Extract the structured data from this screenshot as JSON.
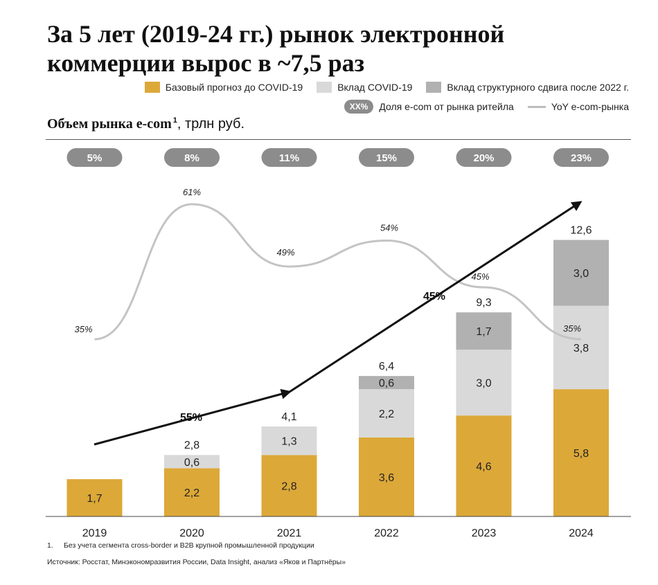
{
  "title": "За 5 лет (2019-24 гг.) рынок электронной коммерции вырос в ~7,5 раз",
  "legend": {
    "base": "Базовый прогноз до COVID-19",
    "covid": "Вклад COVID-19",
    "structural": "Вклад структурного сдвига после 2022 г.",
    "share_sample": "XX%",
    "share": "Доля e-com от рынка ритейла",
    "yoy": "YoY e-com-рынка"
  },
  "subtitle": {
    "bold": "Объем рынка e-com",
    "superscript": "1",
    "rest": ", трлн руб."
  },
  "colors": {
    "base": "#dca838",
    "covid": "#d9d9d9",
    "structural": "#b1b1b1",
    "pill": "#8c8c8c",
    "yoy_line": "#c4c4c4",
    "arrow": "#111111"
  },
  "chart_data": {
    "type": "bar",
    "stacked": true,
    "categories": [
      "2019",
      "2020",
      "2021",
      "2022",
      "2023",
      "2024"
    ],
    "series": [
      {
        "name": "Базовый прогноз до COVID-19",
        "values": [
          1.7,
          2.2,
          2.8,
          3.6,
          4.6,
          5.8
        ],
        "labels": [
          "1,7",
          "2,2",
          "2,8",
          "3,6",
          "4,6",
          "5,8"
        ]
      },
      {
        "name": "Вклад COVID-19",
        "values": [
          0,
          0.6,
          1.3,
          2.2,
          3.0,
          3.8
        ],
        "labels": [
          "",
          "0,6",
          "1,3",
          "2,2",
          "3,0",
          "3,8"
        ]
      },
      {
        "name": "Вклад структурного сдвига после 2022 г.",
        "values": [
          0,
          0,
          0,
          0.6,
          1.7,
          3.0
        ],
        "labels": [
          "",
          "",
          "",
          "0,6",
          "1,7",
          "3,0"
        ]
      }
    ],
    "totals": [
      "",
      "2,8",
      "4,1",
      "6,4",
      "9,3",
      "12,6"
    ],
    "share": [
      "5%",
      "8%",
      "11%",
      "15%",
      "20%",
      "23%"
    ],
    "yoy": {
      "name": "YoY e-com-рынка",
      "values": [
        35,
        61,
        49,
        54,
        45,
        35
      ],
      "labels": [
        "35%",
        "61%",
        "49%",
        "54%",
        "45%",
        "35%"
      ]
    },
    "growth_arrows": [
      {
        "from": "2019",
        "to": "2021",
        "label": "55%"
      },
      {
        "from": "2021",
        "to": "2024",
        "label": "45%"
      }
    ],
    "ylim": [
      0,
      14
    ],
    "xlabel": "",
    "ylabel": ""
  },
  "footnotes": {
    "note_number": "1.",
    "note": "Без учета сегмента cross-border и B2B крупной промышленной продукции",
    "source": "Источник: Росстат, Минэкономразвития России,  Data Insight, анализ «Яков и Партнёры»"
  }
}
